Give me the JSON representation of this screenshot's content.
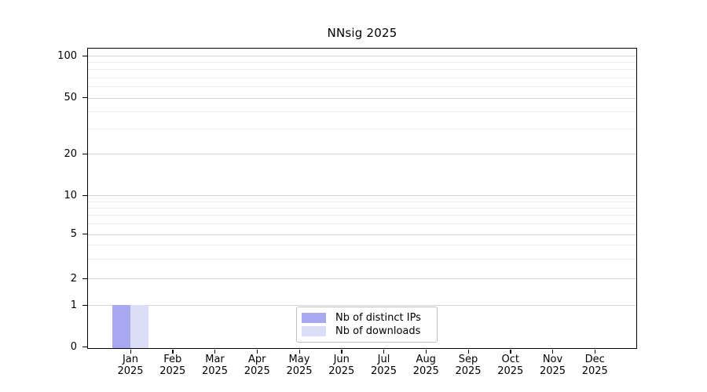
{
  "title": "NNsig 2025",
  "colors": {
    "bar_distinct_ips": "#a8a8f1",
    "bar_downloads": "#dcdef8",
    "grid_major": "#d5d5d5",
    "grid_minor": "#ebebeb",
    "spine": "#000000",
    "legend_border": "#bfbfbf"
  },
  "y_axis": {
    "tick_labels": [
      "100",
      "50",
      "20",
      "10",
      "5",
      "2",
      "1",
      "0"
    ],
    "tick_values": [
      100,
      50,
      20,
      10,
      5,
      2,
      1,
      0
    ],
    "minor_grid_values": [
      3,
      4,
      6,
      7,
      8,
      9,
      30,
      40,
      60,
      70,
      80,
      90
    ]
  },
  "x_axis": {
    "months": [
      {
        "month": "Jan",
        "year": "2025"
      },
      {
        "month": "Feb",
        "year": "2025"
      },
      {
        "month": "Mar",
        "year": "2025"
      },
      {
        "month": "Apr",
        "year": "2025"
      },
      {
        "month": "May",
        "year": "2025"
      },
      {
        "month": "Jun",
        "year": "2025"
      },
      {
        "month": "Jul",
        "year": "2025"
      },
      {
        "month": "Aug",
        "year": "2025"
      },
      {
        "month": "Sep",
        "year": "2025"
      },
      {
        "month": "Oct",
        "year": "2025"
      },
      {
        "month": "Nov",
        "year": "2025"
      },
      {
        "month": "Dec",
        "year": "2025"
      }
    ]
  },
  "legend": {
    "items": [
      {
        "label": "Nb of distinct IPs",
        "color_key": "bar_distinct_ips"
      },
      {
        "label": "Nb of downloads",
        "color_key": "bar_downloads"
      }
    ]
  },
  "chart_data": {
    "type": "bar",
    "title": "NNsig 2025",
    "categories": [
      "Jan 2025",
      "Feb 2025",
      "Mar 2025",
      "Apr 2025",
      "May 2025",
      "Jun 2025",
      "Jul 2025",
      "Aug 2025",
      "Sep 2025",
      "Oct 2025",
      "Nov 2025",
      "Dec 2025"
    ],
    "series": [
      {
        "name": "Nb of distinct IPs",
        "values": [
          1,
          0,
          0,
          0,
          0,
          0,
          0,
          0,
          0,
          0,
          0,
          0
        ],
        "color": "#a8a8f1"
      },
      {
        "name": "Nb of downloads",
        "values": [
          1,
          0,
          0,
          0,
          0,
          0,
          0,
          0,
          0,
          0,
          0,
          0
        ],
        "color": "#dcdef8"
      }
    ],
    "xlabel": "",
    "ylabel": "",
    "yscale": "symlog",
    "y_ticks": [
      0,
      1,
      2,
      5,
      10,
      20,
      50,
      100
    ],
    "ylim": [
      0,
      110
    ],
    "grid": "horizontal major and log minor gridlines",
    "legend_position": "lower center inside plot"
  }
}
